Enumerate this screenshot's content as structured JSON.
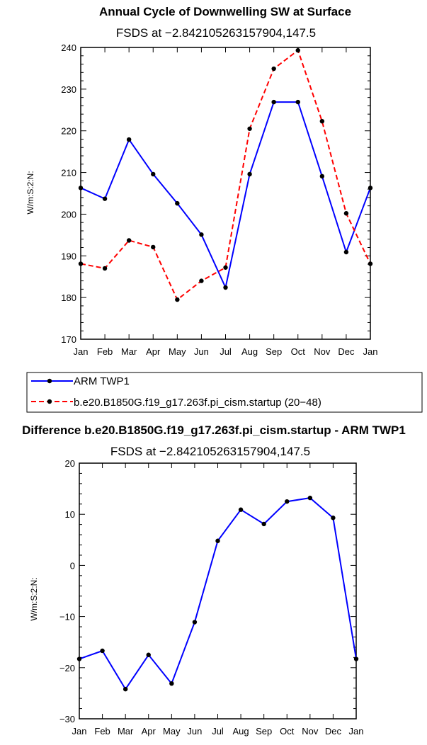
{
  "chart_data": [
    {
      "type": "line",
      "title": "Annual Cycle of Downwelling SW at Surface",
      "subtitle": "FSDS at −2.842105263157904,147.5",
      "ylabel": "W/m:S:2:N:",
      "xlabel": "",
      "categories": [
        "Jan",
        "Feb",
        "Mar",
        "Apr",
        "May",
        "Jun",
        "Jul",
        "Aug",
        "Sep",
        "Oct",
        "Nov",
        "Dec",
        "Jan"
      ],
      "ylim": [
        170,
        240
      ],
      "yticks": [
        170,
        180,
        190,
        200,
        210,
        220,
        230,
        240
      ],
      "ytick_labels": [
        "170",
        "180",
        "190",
        "200",
        "210",
        "220",
        "230",
        "240"
      ],
      "series": [
        {
          "name": "ARM TWP1",
          "color": "#0000ff",
          "dash": "solid",
          "values": [
            206.3,
            203.7,
            217.9,
            209.6,
            202.6,
            195.1,
            182.4,
            209.6,
            226.9,
            226.9,
            209.1,
            190.9,
            206.3
          ]
        },
        {
          "name": "b.e20.B1850G.f19_g17.263f.pi_cism.startup (20−48)",
          "color": "#ff0000",
          "dash": "dashed",
          "values": [
            188.1,
            187.0,
            193.7,
            192.1,
            179.5,
            184.0,
            187.2,
            220.5,
            234.9,
            239.3,
            222.3,
            200.2,
            188.1
          ]
        }
      ],
      "legend_position": "below"
    },
    {
      "type": "line",
      "title": "Difference b.e20.B1850G.f19_g17.263f.pi_cism.startup - ARM TWP1",
      "subtitle": "FSDS at −2.842105263157904,147.5",
      "ylabel": "W/m:S:2:N:",
      "xlabel": "",
      "categories": [
        "Jan",
        "Feb",
        "Mar",
        "Apr",
        "May",
        "Jun",
        "Jul",
        "Aug",
        "Sep",
        "Oct",
        "Nov",
        "Dec",
        "Jan"
      ],
      "ylim": [
        -30,
        20
      ],
      "yticks": [
        -30,
        -20,
        -10,
        0,
        10,
        20
      ],
      "ytick_labels": [
        "−30",
        "−20",
        "−10",
        "0",
        "10",
        "20"
      ],
      "series": [
        {
          "name": "Difference",
          "color": "#0000ff",
          "dash": "solid",
          "values": [
            -18.3,
            -16.7,
            -24.2,
            -17.5,
            -23.1,
            -11.1,
            4.8,
            10.9,
            8.1,
            12.5,
            13.2,
            9.3,
            -18.3
          ]
        }
      ]
    }
  ]
}
